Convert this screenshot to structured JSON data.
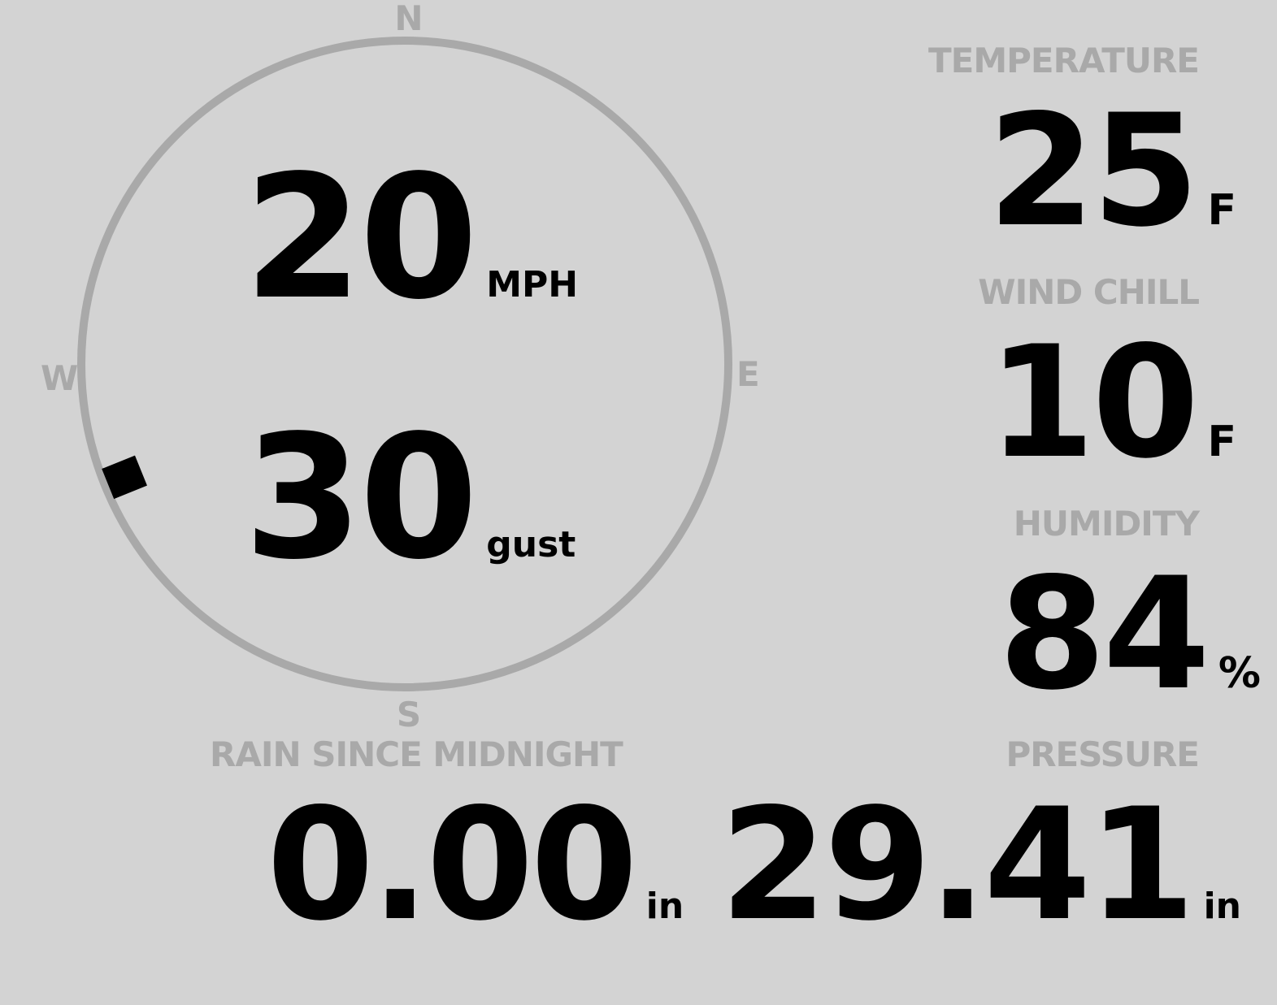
{
  "wind": {
    "compass": {
      "north": "N",
      "south": "S",
      "east": "E",
      "west": "W"
    },
    "direction_degrees": 248,
    "speed": "20",
    "speed_unit": "MPH",
    "gust": "30",
    "gust_unit": "gust"
  },
  "temperature": {
    "label": "TEMPERATURE",
    "value": "25",
    "unit": "F"
  },
  "wind_chill": {
    "label": "WIND CHILL",
    "value": "10",
    "unit": "F"
  },
  "humidity": {
    "label": "HUMIDITY",
    "value": "84",
    "unit": "%"
  },
  "rain": {
    "label": "RAIN SINCE MIDNIGHT",
    "value": "0.00",
    "unit": "in"
  },
  "pressure": {
    "label": "PRESSURE",
    "value": "29.41",
    "unit": "in"
  },
  "colors": {
    "background": "#d3d3d3",
    "muted": "#a9a9a9",
    "value": "#000000"
  }
}
